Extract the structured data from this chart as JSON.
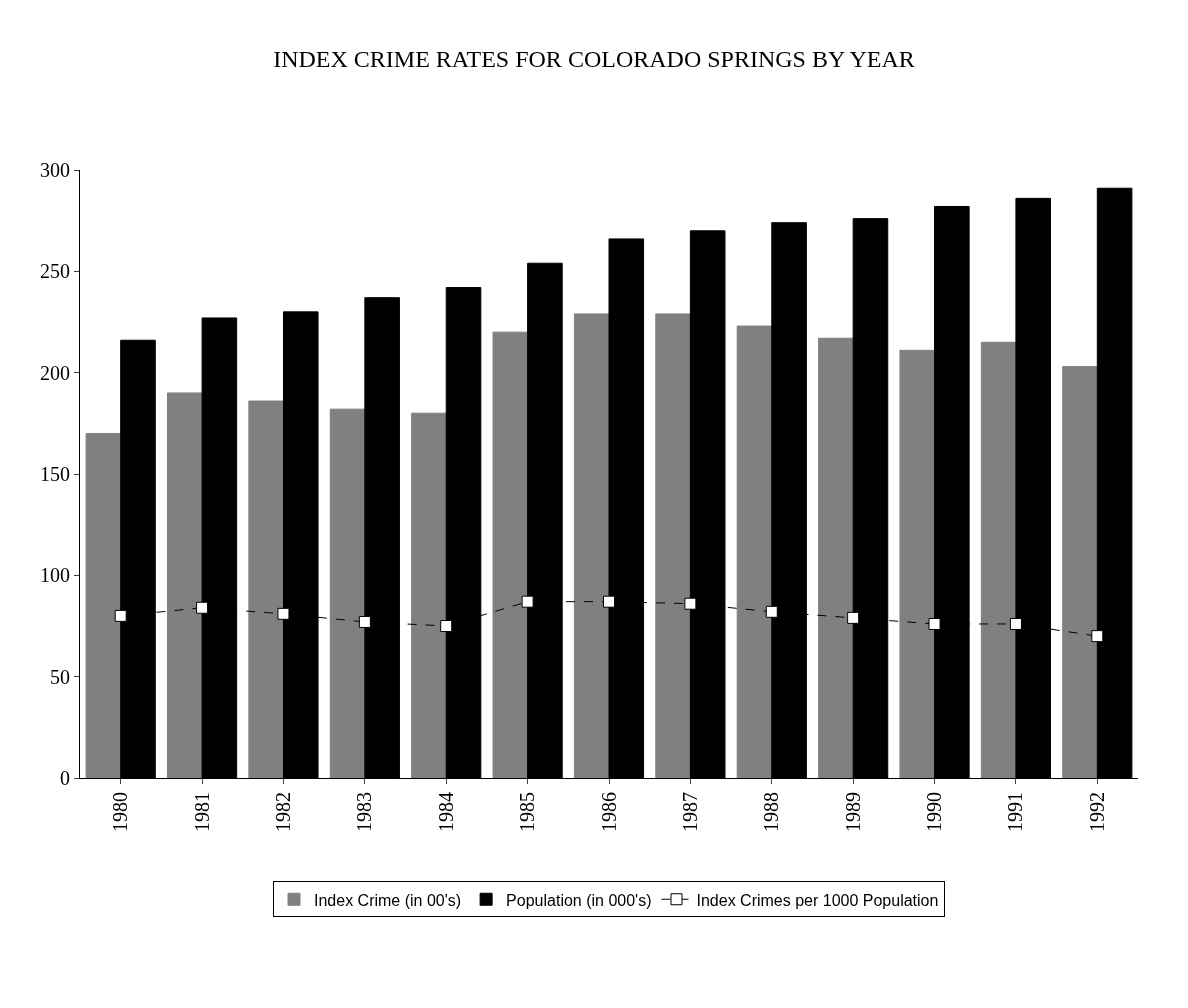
{
  "chart_data": {
    "type": "bar",
    "title": "INDEX CRIME RATES FOR COLORADO SPRINGS BY YEAR",
    "categories": [
      "1980",
      "1981",
      "1982",
      "1983",
      "1984",
      "1985",
      "1986",
      "1987",
      "1988",
      "1989",
      "1990",
      "1991",
      "1992"
    ],
    "series": [
      {
        "name": "Index Crime (in 00's)",
        "color": "#808080",
        "values": [
          170,
          190,
          186,
          182,
          180,
          220,
          229,
          229,
          223,
          217,
          211,
          215,
          203
        ]
      },
      {
        "name": "Population (in 000's)",
        "color": "#000000",
        "values": [
          216,
          227,
          230,
          237,
          242,
          254,
          266,
          270,
          274,
          276,
          282,
          286,
          291
        ]
      },
      {
        "name": "Index Crimes per 1000 Population",
        "type": "line",
        "color": "#000000",
        "marker": "square",
        "line_style": "dashed",
        "values": [
          80,
          84,
          81,
          77,
          75,
          87,
          87,
          86,
          82,
          79,
          76,
          76,
          70
        ]
      }
    ],
    "ylim": [
      0,
      300
    ],
    "yticks": [
      0,
      50,
      100,
      150,
      200,
      250,
      300
    ],
    "legend": "bottom"
  }
}
